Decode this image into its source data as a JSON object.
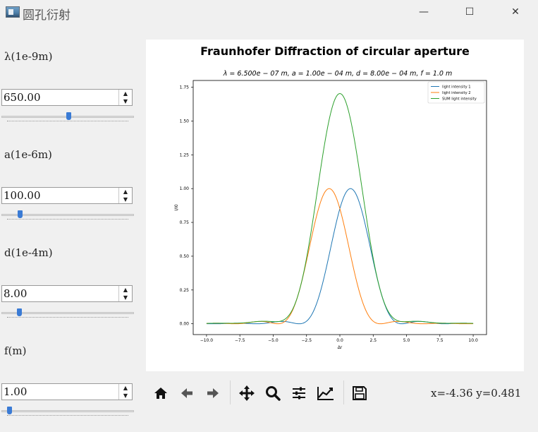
{
  "window": {
    "title": "圆孔衍射",
    "minimize_glyph": "—",
    "maximize_glyph": "☐",
    "close_glyph": "✕"
  },
  "controls": [
    {
      "label": "λ(1e-9m)",
      "value": "650.00",
      "slider_fraction": 0.5
    },
    {
      "label": "a(1e-6m)",
      "value": "100.00",
      "slider_fraction": 0.11
    },
    {
      "label": "d(1e-4m)",
      "value": "8.00",
      "slider_fraction": 0.1
    },
    {
      "label": "f(m)",
      "value": "1.00",
      "slider_fraction": 0.02
    }
  ],
  "toolbar": {
    "buttons": [
      "home-icon",
      "back-arrow-icon",
      "forward-arrow-icon",
      "pan-icon",
      "zoom-icon",
      "configure-subplots-icon",
      "edit-axis-icon",
      "save-icon"
    ],
    "coordinate_readout": "x=-4.36  y=0.481"
  },
  "chart_data": {
    "type": "line",
    "title": "Fraunhofer Diffraction of circular aperture",
    "subtitle": "λ = 6.500e − 07 m,  a = 1.00e − 04 m,  d = 8.00e − 04 m,  f = 1.0 m",
    "xlabel": "Δr",
    "ylabel": "I/I0",
    "xlim": [
      -11,
      11
    ],
    "ylim": [
      -0.08,
      1.8
    ],
    "xticks": [
      -10.0,
      -7.5,
      -5.0,
      -2.5,
      0.0,
      2.5,
      5.0,
      7.5,
      10.0
    ],
    "xtick_labels": [
      "−10.0",
      "−7.5",
      "−5.0",
      "−2.5",
      "0.0",
      "2.5",
      "5.0",
      "7.5",
      "10.0"
    ],
    "yticks": [
      0.0,
      0.25,
      0.5,
      0.75,
      1.0,
      1.25,
      1.5,
      1.75
    ],
    "ytick_labels": [
      "0.00",
      "0.25",
      "0.50",
      "0.75",
      "1.00",
      "1.25",
      "1.50",
      "1.75"
    ],
    "legend_position": "top-right",
    "series": [
      {
        "name": "light intensity 1",
        "color": "#1f77b4",
        "shift": 0.8,
        "scale": 1.0
      },
      {
        "name": "light intensity 2",
        "color": "#ff7f0e",
        "shift": -0.8,
        "scale": 1.0
      },
      {
        "name": "SUM light intensity",
        "color": "#2ca02c",
        "shift": 0.0,
        "scale": 1.0
      }
    ],
    "peak_points": [
      {
        "series": "light intensity 1",
        "x": 0.8,
        "y": 1.0
      },
      {
        "series": "light intensity 2",
        "x": -0.8,
        "y": 1.0
      },
      {
        "series": "SUM light intensity",
        "x": 0.0,
        "y": 1.72
      }
    ],
    "first_zero_distance": 3.85
  }
}
